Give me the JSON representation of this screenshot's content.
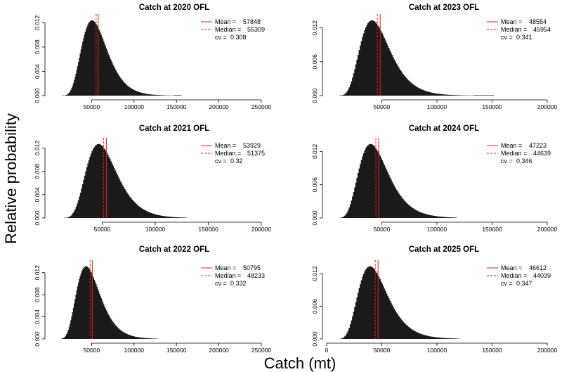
{
  "figure": {
    "ylabel": "Relative probability",
    "xlabel": "Catch (mt)"
  },
  "chart_data": [
    {
      "type": "bar",
      "title": "Catch at 2020 OFL",
      "xlim": [
        0,
        250000
      ],
      "xticks": [
        50000,
        100000,
        150000,
        200000,
        250000
      ],
      "xtick_labels": [
        "50000",
        "100000",
        "150000",
        "200000",
        "250000"
      ],
      "ylim": [
        0,
        0.0132
      ],
      "yticks": [
        0,
        0.004,
        0.008,
        0.012
      ],
      "ytick_labels": [
        "0.000",
        "0.004",
        "0.008",
        "0.012"
      ],
      "mean": 57848,
      "median": 55309,
      "cv": 0.308,
      "x_min": 16000,
      "x_max": 156000,
      "legend": {
        "mean_label": "Mean = ",
        "mean_value": "57848",
        "median_label": "Median = ",
        "median_value": "55309",
        "cv_label": "cv = ",
        "cv_value": "0.308"
      }
    },
    {
      "type": "bar",
      "title": "Catch at 2023 OFL",
      "xlim": [
        0,
        200000
      ],
      "xticks": [
        50000,
        100000,
        150000,
        200000
      ],
      "xtick_labels": [
        "50000",
        "100000",
        "150000",
        "200000"
      ],
      "ylim": [
        0,
        0.0142
      ],
      "yticks": [
        0,
        0.006,
        0.012
      ],
      "ytick_labels": [
        "0.000",
        "0.006",
        "0.012"
      ],
      "mean": 48554,
      "median": 45954,
      "cv": 0.341,
      "x_min": 12000,
      "x_max": 152000,
      "legend": {
        "mean_label": "Mean = ",
        "mean_value": "48554",
        "median_label": "Median = ",
        "median_value": "45954",
        "cv_label": "cv = ",
        "cv_value": "0.341"
      }
    },
    {
      "type": "bar",
      "title": "Catch at 2021 OFL",
      "xlim": [
        0,
        200000
      ],
      "xticks": [
        50000,
        100000,
        150000,
        200000
      ],
      "xtick_labels": [
        "50000",
        "100000",
        "150000",
        "200000"
      ],
      "ylim": [
        0,
        0.0135
      ],
      "yticks": [
        0,
        0.004,
        0.008,
        0.012
      ],
      "ytick_labels": [
        "0.000",
        "0.004",
        "0.008",
        "0.012"
      ],
      "mean": 53929,
      "median": 51375,
      "cv": 0.32,
      "x_min": 14000,
      "x_max": 130000,
      "legend": {
        "mean_label": "Mean = ",
        "mean_value": "53929",
        "median_label": "Median = ",
        "median_value": "51375",
        "cv_label": "cv = ",
        "cv_value": "0.32"
      }
    },
    {
      "type": "bar",
      "title": "Catch at 2024 OFL",
      "xlim": [
        0,
        200000
      ],
      "xticks": [
        50000,
        100000,
        150000,
        200000
      ],
      "xtick_labels": [
        "50000",
        "100000",
        "150000",
        "200000"
      ],
      "ylim": [
        0,
        0.0142
      ],
      "yticks": [
        0,
        0.006,
        0.012
      ],
      "ytick_labels": [
        "0.000",
        "0.006",
        "0.012"
      ],
      "mean": 47223,
      "median": 44639,
      "cv": 0.346,
      "x_min": 12000,
      "x_max": 118000,
      "legend": {
        "mean_label": "Mean = ",
        "mean_value": "47223",
        "median_label": "Median = ",
        "median_value": "44639",
        "cv_label": "cv = ",
        "cv_value": "0.346"
      }
    },
    {
      "type": "bar",
      "title": "Catch at 2022 OFL",
      "xlim": [
        0,
        250000
      ],
      "xticks": [
        50000,
        100000,
        150000,
        200000,
        250000
      ],
      "xtick_labels": [
        "50000",
        "100000",
        "150000",
        "200000",
        "250000"
      ],
      "ylim": [
        0,
        0.014
      ],
      "yticks": [
        0,
        0.004,
        0.008,
        0.012
      ],
      "ytick_labels": [
        "0.000",
        "0.004",
        "0.008",
        "0.012"
      ],
      "mean": 50795,
      "median": 48233,
      "cv": 0.332,
      "x_min": 14000,
      "x_max": 128000,
      "legend": {
        "mean_label": "Mean = ",
        "mean_value": "50795",
        "median_label": "Median = ",
        "median_value": "48233",
        "cv_label": "cv = ",
        "cv_value": "0.332"
      }
    },
    {
      "type": "bar",
      "title": "Catch at 2025 OFL",
      "xlim": [
        0,
        200000
      ],
      "xticks": [
        0,
        50000,
        100000,
        150000,
        200000
      ],
      "xtick_labels": [
        "0",
        "50000",
        "100000",
        "150000",
        "200000"
      ],
      "ylim": [
        0,
        0.0142
      ],
      "yticks": [
        0,
        0.006,
        0.012
      ],
      "ytick_labels": [
        "0.000",
        "0.006",
        "0.012"
      ],
      "mean": 46612,
      "median": 44039,
      "cv": 0.347,
      "x_min": 12000,
      "x_max": 120000,
      "legend": {
        "mean_label": "Mean = ",
        "mean_value": "46612",
        "median_label": "Median = ",
        "median_value": "44039",
        "cv_label": "cv = ",
        "cv_value": "0.347"
      }
    }
  ],
  "colors": {
    "bars": "#1a1a1a",
    "mean_line": "#e02020",
    "median_line": "#e02020"
  }
}
